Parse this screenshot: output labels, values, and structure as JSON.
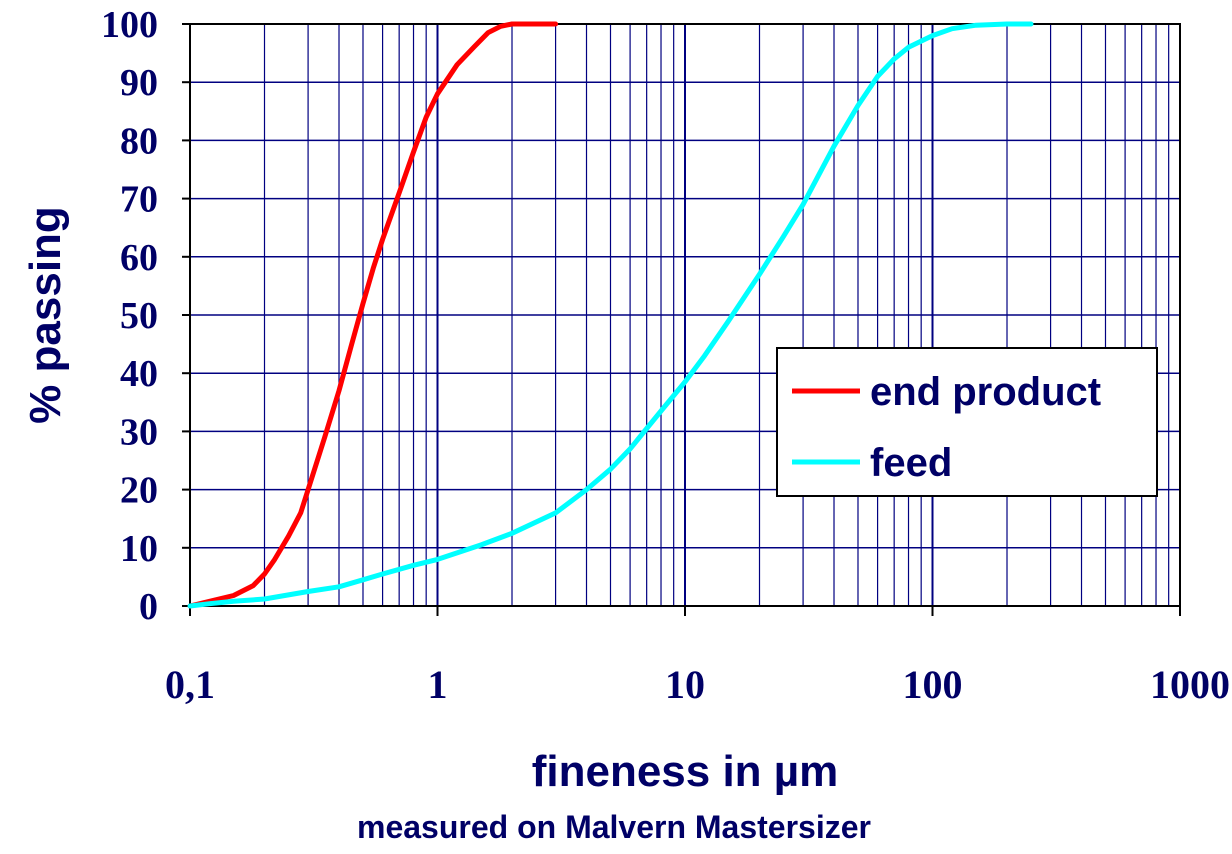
{
  "chart_data": {
    "type": "line",
    "xlabel": "fineness in µm",
    "subtitle": "measured on Malvern Mastersizer",
    "ylabel": "% passing",
    "x_scale": "log",
    "xlim": [
      0.1,
      1000
    ],
    "ylim": [
      0,
      100
    ],
    "x_ticks": [
      "0,1",
      "1",
      "10",
      "100",
      "1000"
    ],
    "x_tick_values": [
      0.1,
      1,
      10,
      100,
      1000
    ],
    "y_ticks": [
      "0",
      "10",
      "20",
      "30",
      "40",
      "50",
      "60",
      "70",
      "80",
      "90",
      "100"
    ],
    "y_tick_values": [
      0,
      10,
      20,
      30,
      40,
      50,
      60,
      70,
      80,
      90,
      100
    ],
    "grid": true,
    "legend_position": "right",
    "series": [
      {
        "name": "end product",
        "color": "#ff0000",
        "points": [
          [
            0.1,
            0
          ],
          [
            0.12,
            0.8
          ],
          [
            0.15,
            1.8
          ],
          [
            0.18,
            3.5
          ],
          [
            0.2,
            5.5
          ],
          [
            0.22,
            8
          ],
          [
            0.25,
            12
          ],
          [
            0.28,
            16
          ],
          [
            0.3,
            20
          ],
          [
            0.35,
            29
          ],
          [
            0.4,
            37
          ],
          [
            0.45,
            45
          ],
          [
            0.5,
            52
          ],
          [
            0.55,
            58
          ],
          [
            0.6,
            63
          ],
          [
            0.7,
            71
          ],
          [
            0.8,
            78
          ],
          [
            0.9,
            84
          ],
          [
            1.0,
            88
          ],
          [
            1.2,
            93
          ],
          [
            1.4,
            96
          ],
          [
            1.6,
            98.5
          ],
          [
            1.8,
            99.6
          ],
          [
            2.0,
            100
          ],
          [
            3.0,
            100
          ]
        ]
      },
      {
        "name": "feed",
        "color": "#00ffff",
        "points": [
          [
            0.1,
            0
          ],
          [
            0.12,
            0.4
          ],
          [
            0.15,
            0.8
          ],
          [
            0.2,
            1.2
          ],
          [
            0.3,
            2.5
          ],
          [
            0.4,
            3.3
          ],
          [
            0.5,
            4.5
          ],
          [
            0.6,
            5.5
          ],
          [
            0.8,
            7
          ],
          [
            1.0,
            8
          ],
          [
            1.5,
            10.5
          ],
          [
            2.0,
            12.5
          ],
          [
            3.0,
            16
          ],
          [
            4.0,
            20
          ],
          [
            5.0,
            23.5
          ],
          [
            6.0,
            27
          ],
          [
            7.0,
            30.5
          ],
          [
            8.0,
            33.5
          ],
          [
            10.0,
            38.5
          ],
          [
            12.0,
            43
          ],
          [
            15.0,
            49
          ],
          [
            20.0,
            57
          ],
          [
            25.0,
            63.5
          ],
          [
            30.0,
            69
          ],
          [
            40.0,
            79
          ],
          [
            50.0,
            86
          ],
          [
            60.0,
            91
          ],
          [
            70.0,
            94
          ],
          [
            80.0,
            96
          ],
          [
            100.0,
            98
          ],
          [
            120.0,
            99.2
          ],
          [
            150.0,
            99.8
          ],
          [
            200.0,
            100
          ],
          [
            250.0,
            100
          ]
        ]
      }
    ]
  }
}
